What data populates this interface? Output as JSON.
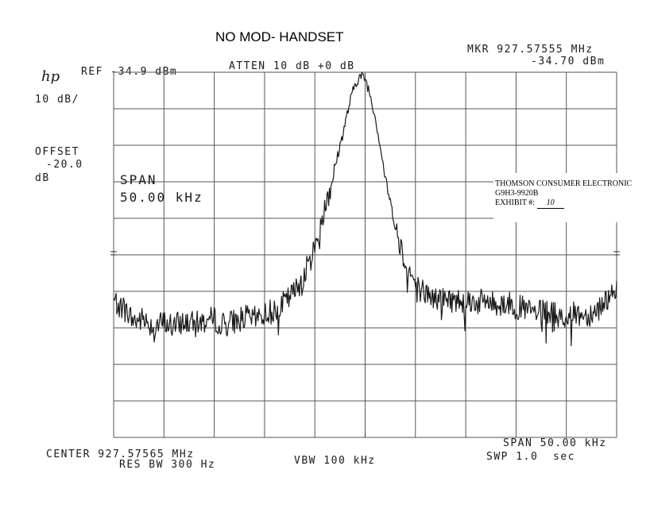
{
  "header": {
    "title": "NO MOD- HANDSET",
    "logo": "hp",
    "ref": "REF -34.9 dBm",
    "atten": "ATTEN 10 dB +0 dB",
    "mkr_freq": "MKR 927.57555 MHz",
    "mkr_level": "-34.70 dBm",
    "scale": "10 dB/",
    "offset_label": "OFFSET",
    "offset_value": "-20.0",
    "offset_unit": "dB",
    "span_label": "SPAN",
    "span_value": "50.00 kHz"
  },
  "footer": {
    "center": "CENTER 927.57565 MHz",
    "res_bw": "RES BW 300 Hz",
    "vbw": "VBW 100 kHz",
    "span": "SPAN 50.00 kHz",
    "swp": "SWP 1.0  sec"
  },
  "stamp": {
    "line1": "THOMSON CONSUMER ELECTRONIC",
    "line2": "G9H3-9920B",
    "exhibit_label": "EXHIBIT #:",
    "exhibit_value": "10"
  },
  "chart_data": {
    "type": "line",
    "xunit": "kHz offset from center",
    "xlim": [
      -25,
      25
    ],
    "ylim": [
      -134.9,
      -34.9
    ],
    "grid": true,
    "grid_divisions": {
      "x": 10,
      "y": 10
    },
    "trace_color": "#1a1a1a",
    "series": [
      {
        "x": [
          -25,
          -24,
          -23,
          -22,
          -21,
          -20,
          -19,
          -18,
          -17,
          -16,
          -15,
          -14,
          -13,
          -12,
          -11,
          -10,
          -9,
          -8,
          -7,
          -6,
          -5,
          -4,
          -3,
          -2,
          -1.5,
          -1,
          -0.5,
          0,
          0.5,
          1,
          1.5,
          2,
          3,
          4,
          5,
          6,
          7,
          8,
          9,
          10,
          11,
          12,
          13,
          14,
          15,
          16,
          17,
          18,
          19,
          20,
          21,
          22,
          23,
          24,
          25
        ],
        "y": [
          -97.5,
          -99.5,
          -103,
          -102.5,
          -104.5,
          -103.5,
          -104.5,
          -103,
          -104,
          -103,
          -102.5,
          -104,
          -103,
          -102,
          -102.5,
          -101,
          -100,
          -98,
          -95,
          -90,
          -83,
          -72,
          -61,
          -49,
          -43,
          -38,
          -36,
          -36.5,
          -41,
          -47,
          -55,
          -64,
          -77,
          -87,
          -93,
          -95.5,
          -97,
          -97,
          -97.5,
          -97,
          -98,
          -97.5,
          -98.5,
          -98,
          -99,
          -100,
          -101,
          -100.5,
          -101.5,
          -102,
          -101,
          -101.5,
          -100,
          -97,
          -93
        ]
      }
    ],
    "marker": {
      "x": 0,
      "freq": "927.57555 MHz",
      "level": "-34.70 dBm"
    }
  }
}
